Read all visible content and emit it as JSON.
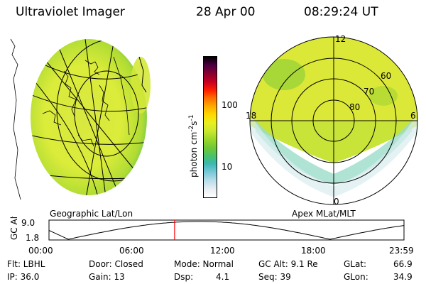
{
  "header": {
    "title": "Ultraviolet Imager",
    "date": "28 Apr 00",
    "time": "08:29:24 UT"
  },
  "colorbar": {
    "unit_label": "photon cm",
    "unit_sup1": "-2",
    "unit_mid": "s",
    "unit_sup2": "-1",
    "tick_high": "100",
    "tick_low": "10",
    "colors": [
      "#000000",
      "#4a0040",
      "#8a0030",
      "#c80020",
      "#ff2000",
      "#ff6a00",
      "#ffa800",
      "#ffd800",
      "#e8f020",
      "#c8e830",
      "#9ad62a",
      "#6cc838",
      "#48c070",
      "#3ab8b0",
      "#78c8d8",
      "#b8dde8",
      "#e8eef2",
      "#ffffff"
    ]
  },
  "geo_map": {
    "label": "Geographic Lat/Lon"
  },
  "polar_plot": {
    "label": "Apex MLat/MLT",
    "mlt_top": "12",
    "mlt_left": "18",
    "mlt_right": "6",
    "mlt_bottom": "0",
    "lat_60": "60",
    "lat_70": "70",
    "lat_80": "80"
  },
  "orbit_plot": {
    "ylabel": "GC Alt",
    "y_top": "9.0",
    "y_bottom": "1.8",
    "x_ticks": [
      "00:00",
      "06:00",
      "12:00",
      "18:00",
      "23:59"
    ],
    "current_marker_hour": 8.49,
    "cursor_color": "#ff0000"
  },
  "status": {
    "flt": "Flt: LBHL",
    "ip": "IP: 36.0",
    "door": "Door: Closed",
    "gain": "Gain: 13",
    "mode": "Mode: Normal",
    "dsp_label": "Dsp:",
    "dsp_value": "4.1",
    "gc_alt": "GC Alt: 9.1 Re",
    "seq": "Seq: 39",
    "glat_label": "GLat:",
    "glat_value": "66.9",
    "glon_label": "GLon:",
    "glon_value": "34.9"
  }
}
